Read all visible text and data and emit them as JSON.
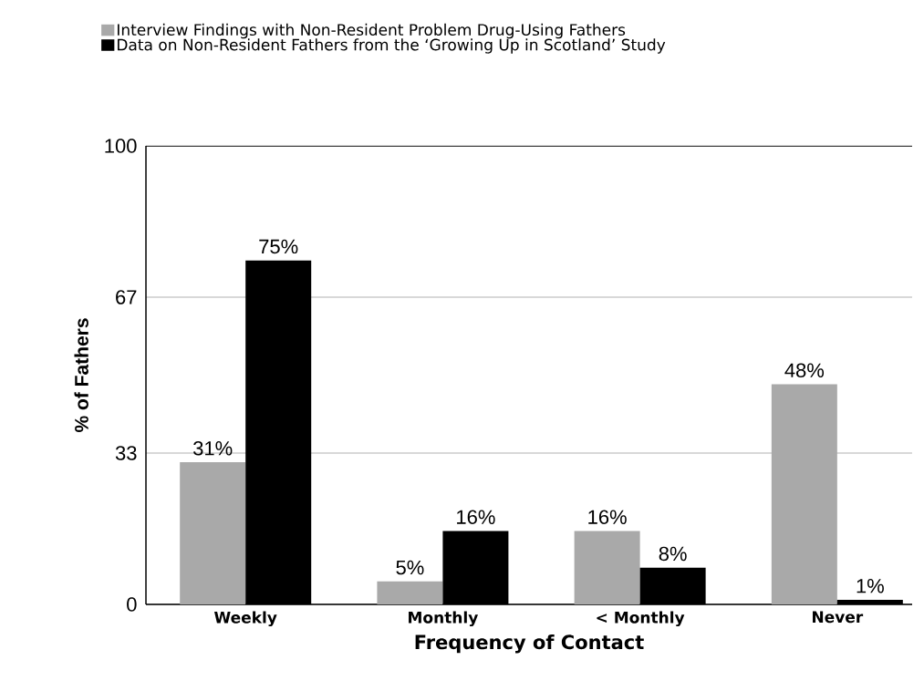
{
  "chart_data": {
    "type": "bar",
    "xlabel": "Frequency of Contact",
    "ylabel": "% of Fathers",
    "categories": [
      "Weekly",
      "Monthly",
      "< Monthly",
      "Never"
    ],
    "series": [
      {
        "name": "Interview Findings with Non-Resident Problem Drug-Using Fathers",
        "color": "#a9a9a9",
        "values": [
          31,
          5,
          16,
          48
        ],
        "value_labels": [
          "31%",
          "5%",
          "16%",
          "48%"
        ]
      },
      {
        "name": "Data on Non-Resident Fathers from the ‘Growing Up in Scotland’ Study",
        "color": "#000000",
        "values": [
          75,
          16,
          8,
          1
        ],
        "value_labels": [
          "75%",
          "16%",
          "8%",
          "1%"
        ]
      }
    ],
    "ylim": [
      0,
      100
    ],
    "yticks": [
      0,
      33,
      67,
      100
    ],
    "grid": "y",
    "legend": "top left"
  }
}
